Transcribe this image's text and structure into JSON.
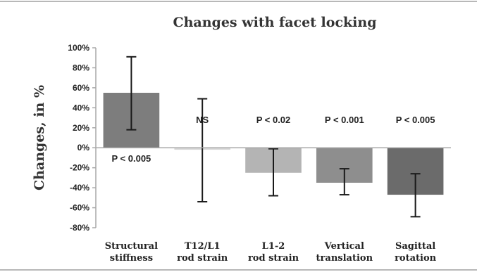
{
  "chart_data": {
    "type": "bar",
    "title": "Changes with facet locking",
    "xlabel": "",
    "ylabel": "Changes, in %",
    "ylim": [
      -80,
      100
    ],
    "yticks": [
      "100%",
      "80%",
      "60%",
      "40%",
      "20%",
      "0%",
      "-20%",
      "-40%",
      "-60%",
      "-80%"
    ],
    "ytick_values": [
      100,
      80,
      60,
      40,
      20,
      0,
      -20,
      -40,
      -60,
      -80
    ],
    "grid": false,
    "categories": [
      [
        "Structural",
        "stiffness"
      ],
      [
        "T12/L1",
        "rod strain"
      ],
      [
        "L1-2",
        "rod strain"
      ],
      [
        "Vertical",
        "translation"
      ],
      [
        "Sagittal",
        "rotation"
      ]
    ],
    "values": [
      55,
      -2,
      -25,
      -35,
      -47
    ],
    "error_low": [
      18,
      -54,
      -48,
      -47,
      -69
    ],
    "error_high": [
      91,
      49,
      -1,
      -21,
      -26
    ],
    "annotations": [
      "P < 0.005",
      "NS",
      "P < 0.02",
      "P < 0.001",
      "P < 0.005"
    ],
    "annotation_placement": [
      "below-bar",
      "above-bar",
      "above-bar",
      "above-bar",
      "above-bar"
    ],
    "colors": [
      "#7d7d7d",
      "#d9d9d9",
      "#b4b4b4",
      "#8e8e8e",
      "#6b6b6b"
    ],
    "error_color": "#1a1a1a",
    "axis_color": "#a8a8a8"
  }
}
